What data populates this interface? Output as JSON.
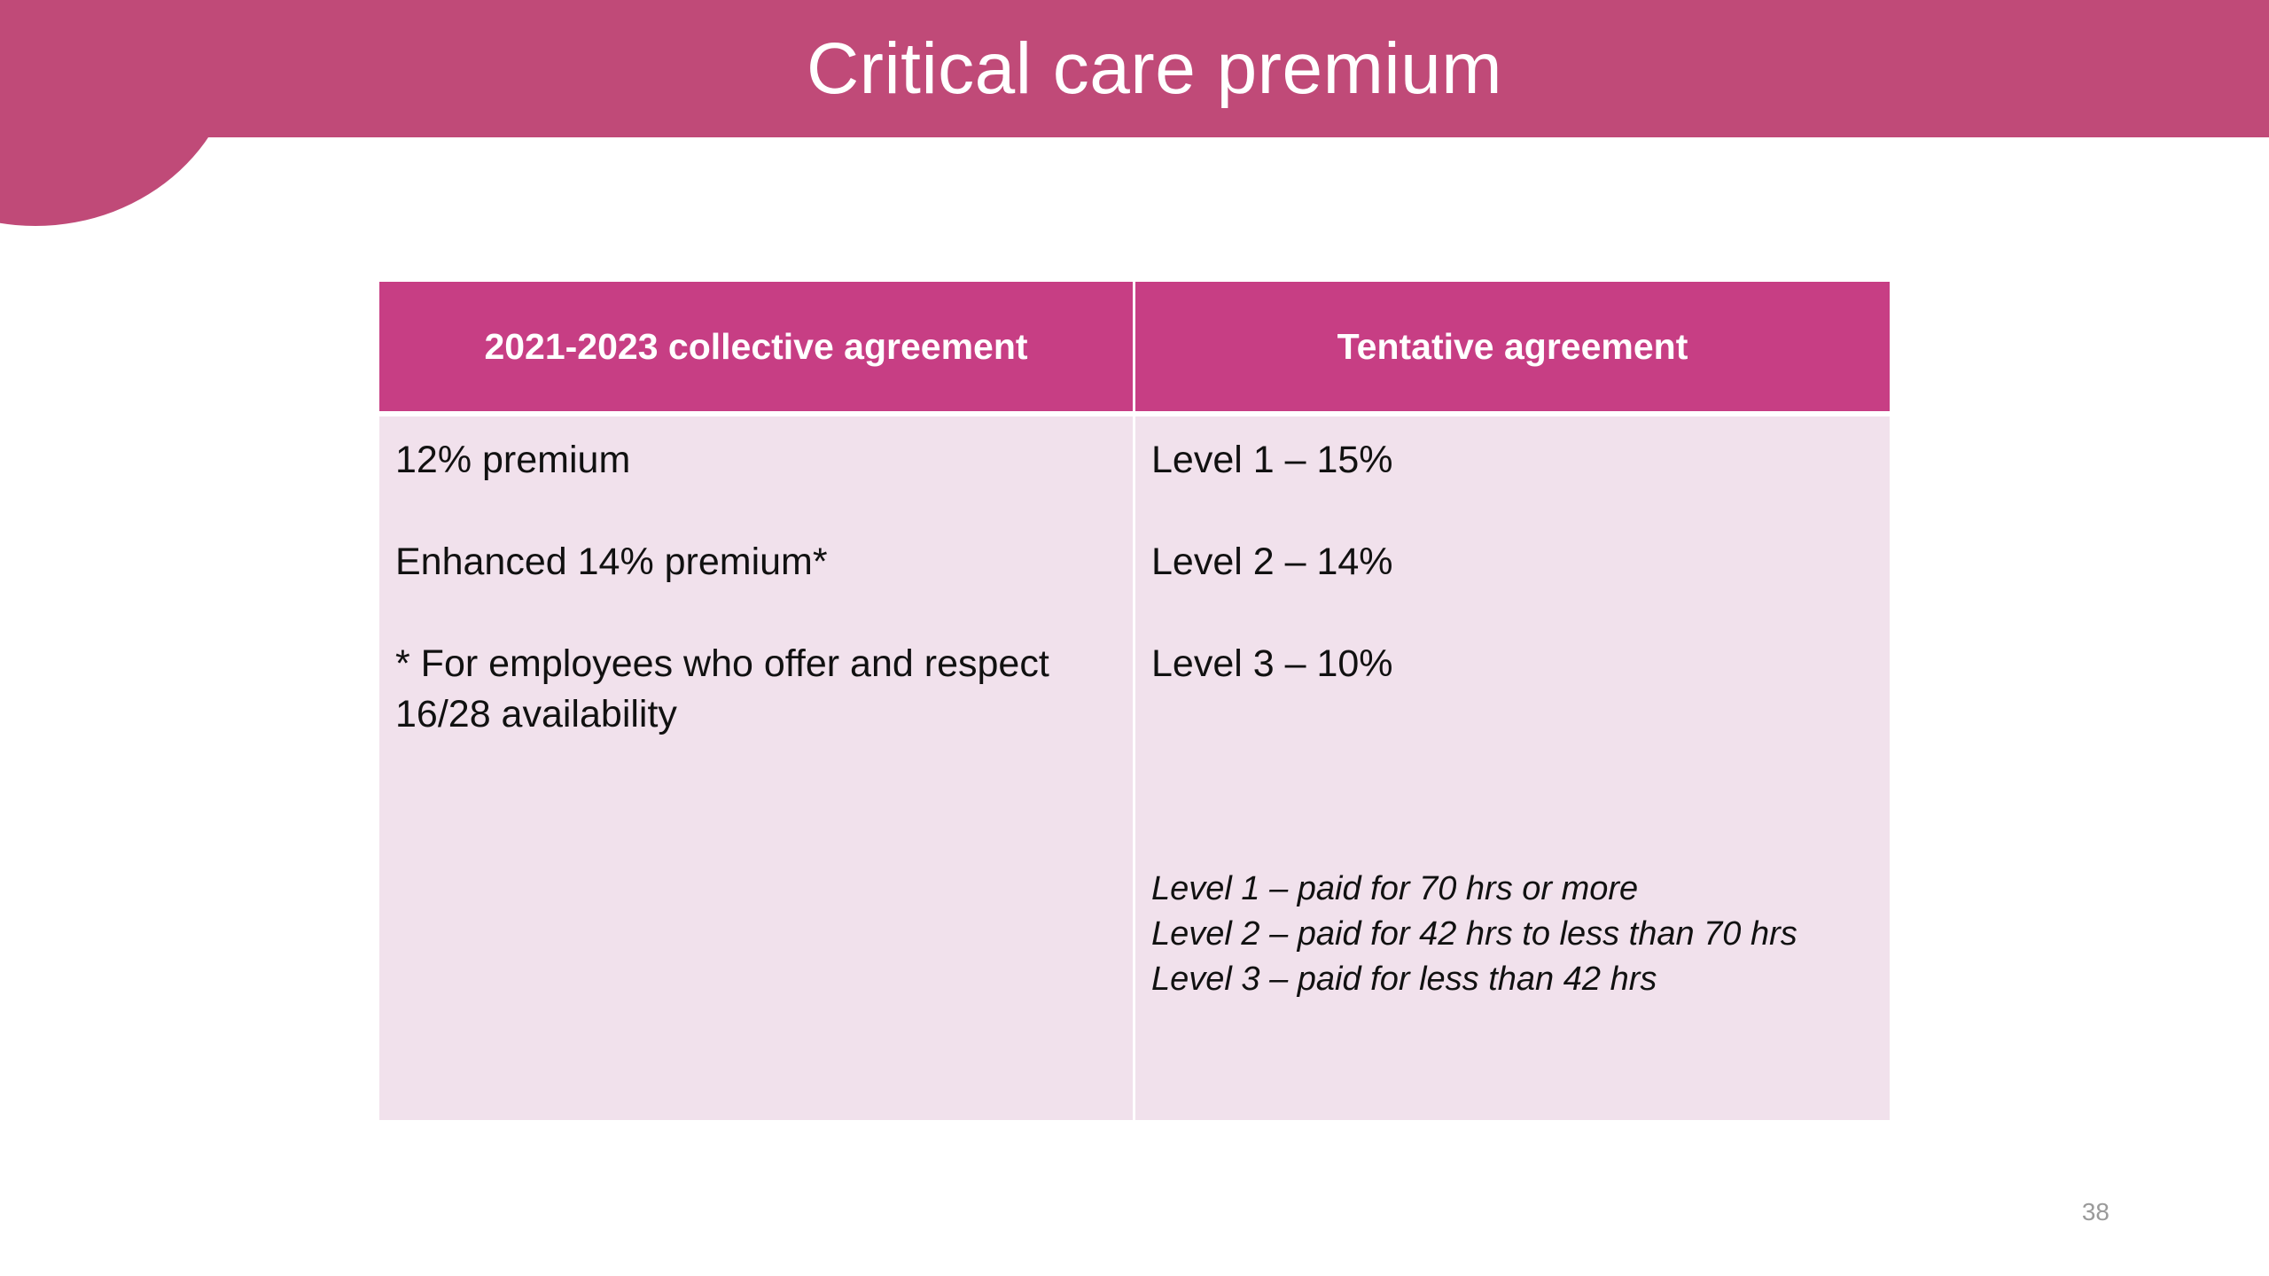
{
  "slide": {
    "title": "Critical care premium",
    "page_number": "38",
    "accent_color": "#c04a78",
    "header_color": "#c73e84",
    "cell_color": "#f1e1ec"
  },
  "table": {
    "headers": [
      "2021-2023 collective agreement",
      "Tentative agreement"
    ],
    "left_column": {
      "line1": "12% premium",
      "line2": "Enhanced 14% premium*",
      "footnote_line1": "* For employees who offer and respect",
      "footnote_line2": "16/28 availability"
    },
    "right_column": {
      "line1": "Level 1 – 15%",
      "line2": "Level 2 – 14%",
      "line3": "Level 3 – 10%",
      "notes": [
        "Level 1 – paid for 70 hrs or more",
        "Level 2 – paid for 42 hrs to less than 70 hrs",
        "Level 3 – paid for less than 42 hrs"
      ]
    }
  }
}
